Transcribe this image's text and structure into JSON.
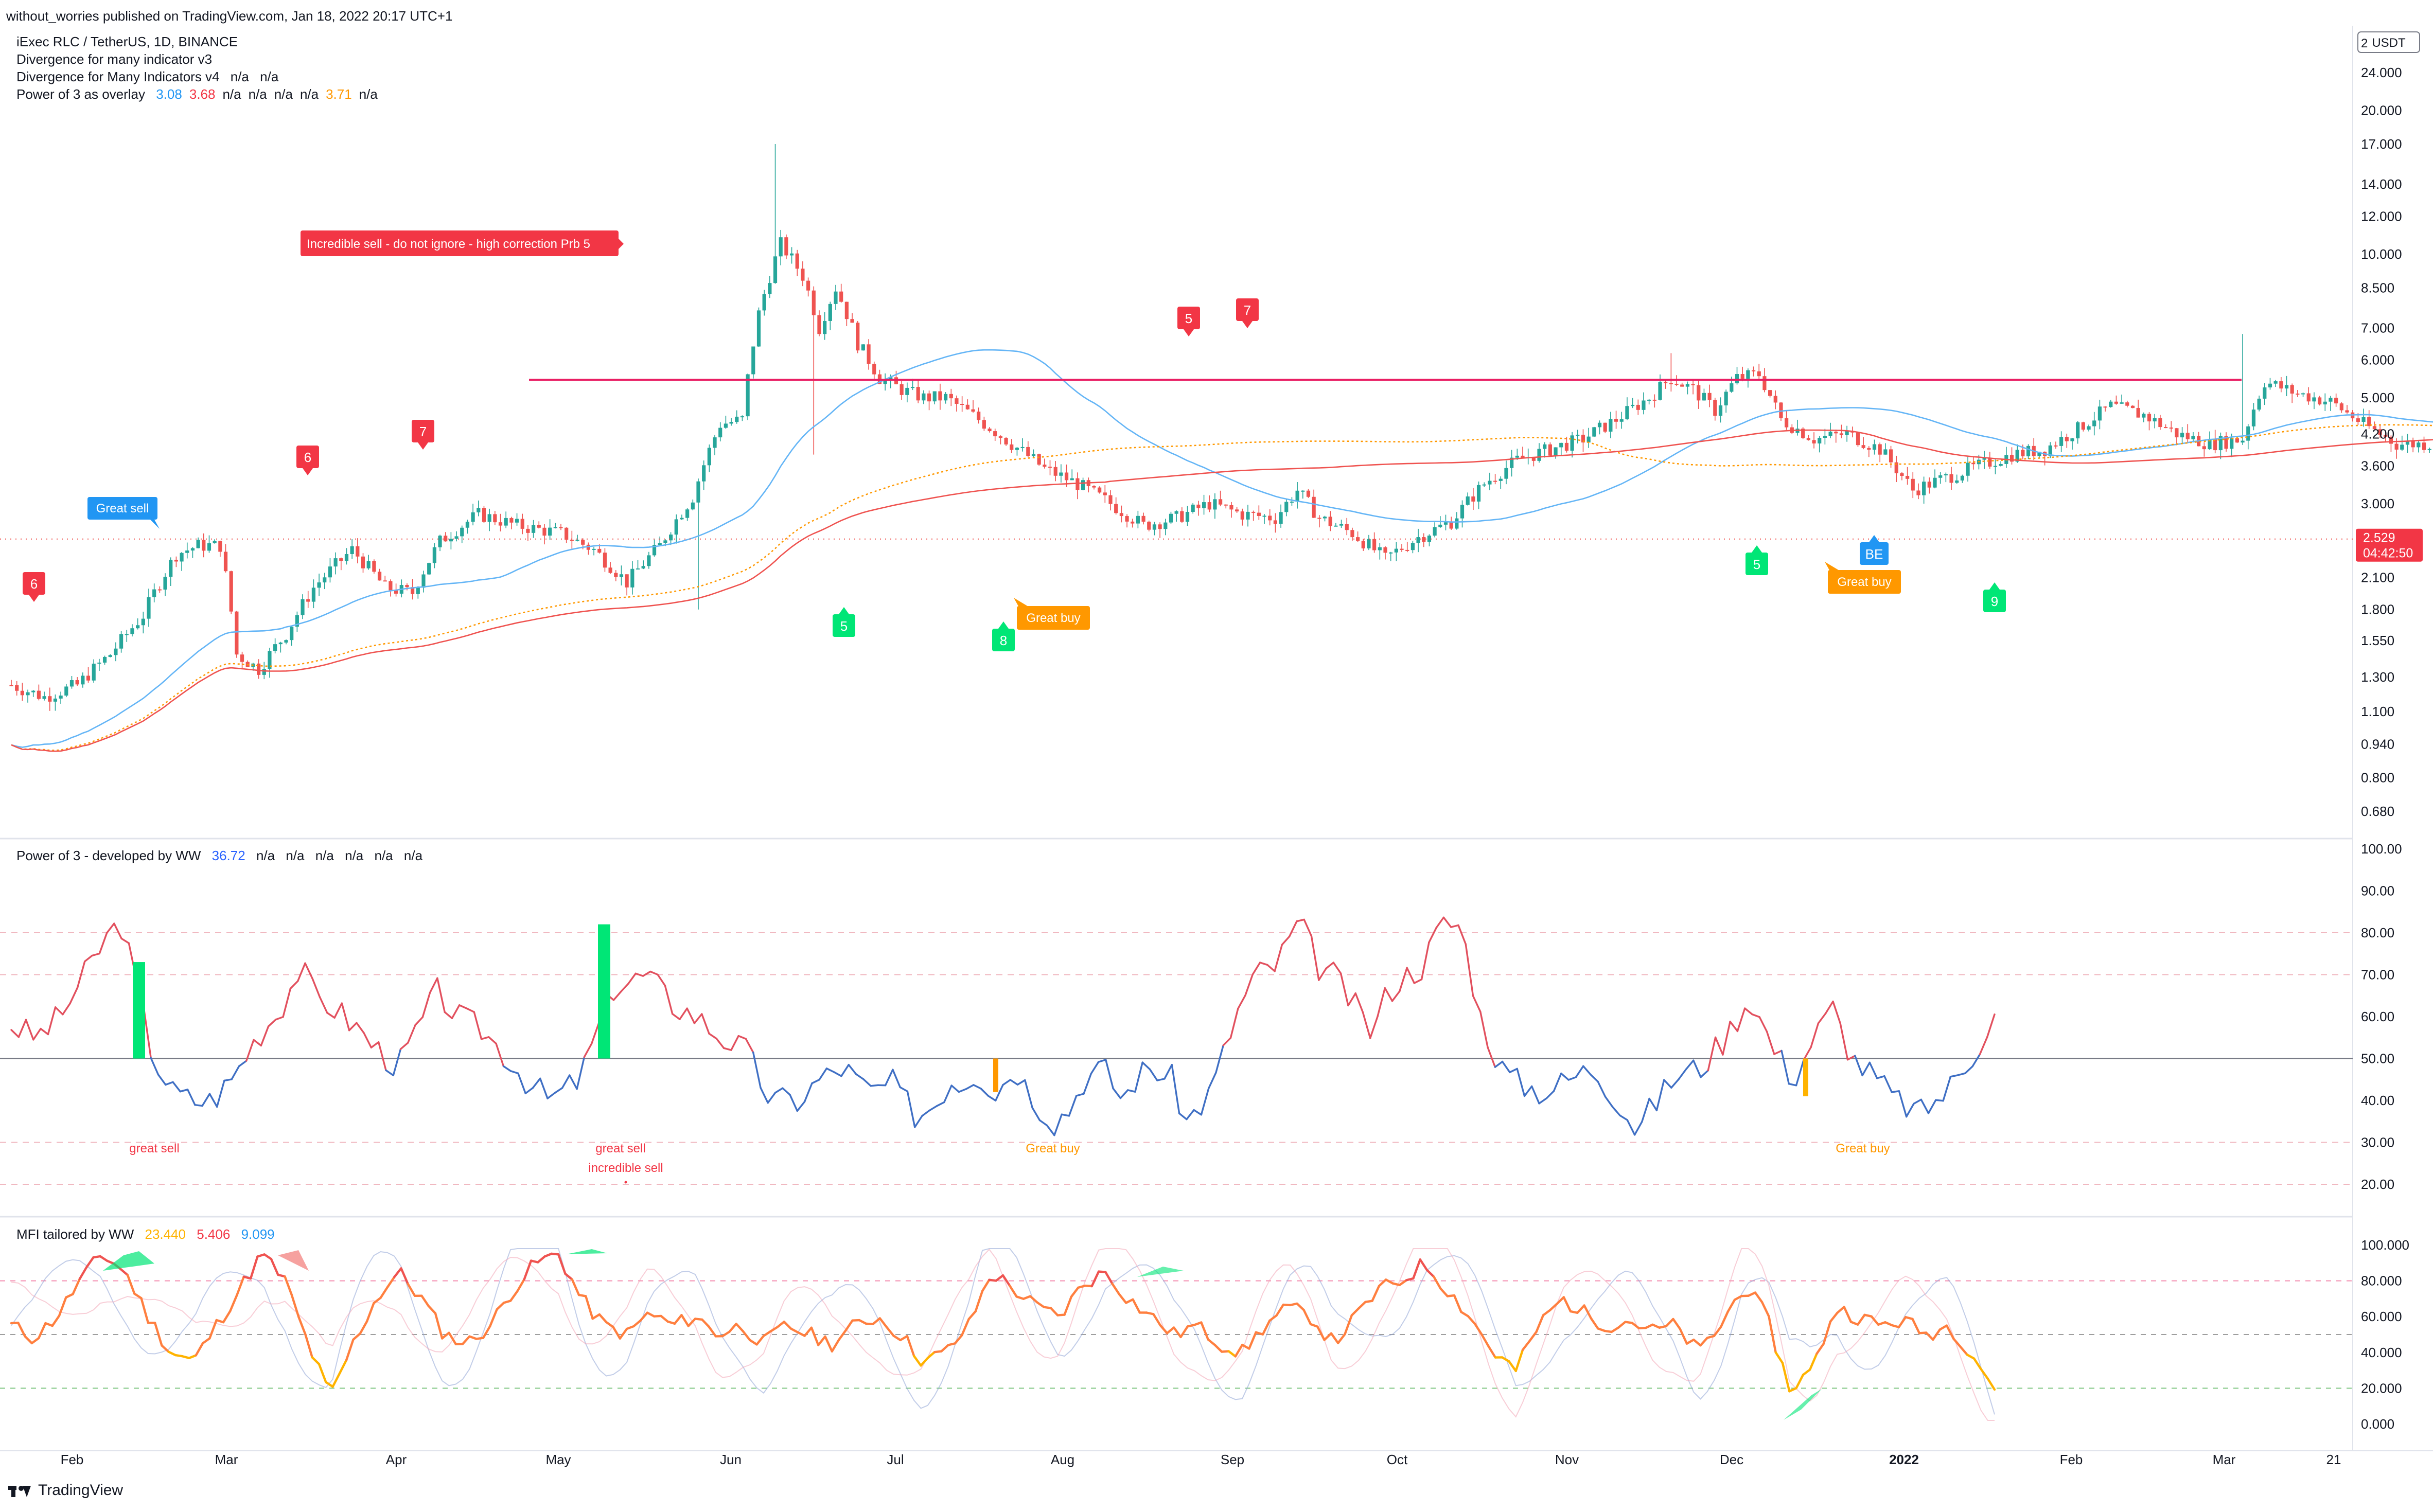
{
  "header": {
    "published": "without_worries published on TradingView.com, Jan 18, 2022 20:17 UTC+1"
  },
  "pane1": {
    "symbol": "iExec RLC / TetherUS, 1D, BINANCE",
    "ind1": "Divergence for many indicator v3",
    "ind2_name": "Divergence for Many Indicators v4",
    "ind2_vals": [
      "n/a",
      "n/a"
    ],
    "ind3_name": "Power of 3 as overlay",
    "ind3_vals": [
      {
        "v": "3.08",
        "c": "#2196f3"
      },
      {
        "v": "3.68",
        "c": "#f23645"
      },
      {
        "v": "n/a",
        "c": "#131722"
      },
      {
        "v": "n/a",
        "c": "#131722"
      },
      {
        "v": "n/a",
        "c": "#131722"
      },
      {
        "v": "n/a",
        "c": "#131722"
      },
      {
        "v": "3.71",
        "c": "#ff9800"
      },
      {
        "v": "n/a",
        "c": "#131722"
      }
    ],
    "currency": "USDT",
    "axis_top_partial": "2",
    "price_ticks": [
      "24.000",
      "20.000",
      "17.000",
      "14.000",
      "12.000",
      "10.000",
      "8.500",
      "7.000",
      "6.000",
      "5.000",
      "4.200",
      "3.600",
      "3.000",
      "2.529",
      "2.100",
      "1.800",
      "1.550",
      "1.300",
      "1.100",
      "0.940",
      "0.800",
      "0.680"
    ],
    "last_price": "2.529",
    "countdown": "04:42:50",
    "labels": {
      "incredible_sell": "Incredible sell - do not ignore - high correction Prb  5",
      "great_sell": "Great sell",
      "great_buy_1": "Great buy",
      "great_buy_2": "Great buy",
      "be": "BE",
      "m6a": "6",
      "m6b": "6",
      "m7a": "7",
      "m5a": "5",
      "m7b": "7",
      "g5a": "5",
      "g8": "8",
      "g5b": "5",
      "g9": "9"
    }
  },
  "pane2": {
    "title": "Power of 3 - developed by WW",
    "value": "36.72",
    "nas": [
      "n/a",
      "n/a",
      "n/a",
      "n/a",
      "n/a",
      "n/a"
    ],
    "ticks": [
      "100.00",
      "90.00",
      "80.00",
      "70.00",
      "60.00",
      "50.00",
      "40.00",
      "30.00",
      "20.00"
    ],
    "great_sell_1": "great sell",
    "great_sell_2": "great sell",
    "incredible_sell": "incredible sell",
    "great_buy_1": "Great buy",
    "great_buy_2": "Great buy"
  },
  "pane3": {
    "title": "MFI tailored by WW",
    "v1": "23.440",
    "v2": "5.406",
    "v3": "9.099",
    "ticks": [
      "100.000",
      "80.000",
      "60.000",
      "40.000",
      "20.000",
      "0.000"
    ]
  },
  "time_axis": [
    "Feb",
    "Mar",
    "Apr",
    "May",
    "Jun",
    "Jul",
    "Aug",
    "Sep",
    "Oct",
    "Nov",
    "Dec",
    "2022",
    "Feb",
    "Mar",
    "21"
  ],
  "footer": {
    "brand": "TradingView"
  },
  "colors": {
    "up": "#26a69a",
    "down": "#ef5350",
    "resistance": "#e91e63",
    "ma_blue": "#64b5f6",
    "ma_red": "#ef5350",
    "ma_orange": "#ff9800"
  }
}
